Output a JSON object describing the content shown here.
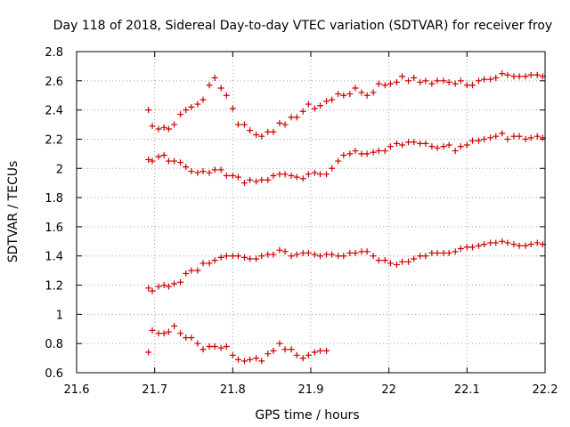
{
  "chart_data": {
    "type": "scatter",
    "title": "Day 118 of 2018, Sidereal Day-to-day VTEC variation (SDTVAR) for receiver froy",
    "xlabel": "GPS time / hours",
    "ylabel": "SDTVAR / TECUs",
    "xlim": [
      21.6,
      22.2
    ],
    "ylim": [
      0.6,
      2.8
    ],
    "grid": true,
    "legend": "none",
    "marker": "+",
    "color": "#cc0000",
    "xticks": [
      "21.6",
      "21.7",
      "21.8",
      "21.9",
      "22",
      "22.1",
      "22.2"
    ],
    "xtick_values": [
      21.6,
      21.7,
      21.8,
      21.9,
      22.0,
      22.1,
      22.2
    ],
    "yticks": [
      "0.6",
      "0.8",
      "1",
      "1.2",
      "1.4",
      "1.6",
      "1.8",
      "2",
      "2.2",
      "2.4",
      "2.6",
      "2.8"
    ],
    "ytick_values": [
      0.6,
      0.8,
      1.0,
      1.2,
      1.4,
      1.6,
      1.8,
      2.0,
      2.2,
      2.4,
      2.6,
      2.8
    ],
    "series": [
      {
        "name": "series-1",
        "x": [
          21.692,
          21.697,
          21.705,
          21.712,
          21.718,
          21.725,
          21.733,
          21.74,
          21.747,
          21.755,
          21.762,
          21.77,
          21.777,
          21.785,
          21.792,
          21.8,
          21.807,
          21.815,
          21.822,
          21.83,
          21.837,
          21.845,
          21.852,
          21.86,
          21.867,
          21.875,
          21.882,
          21.89,
          21.897,
          21.905,
          21.912,
          21.92,
          21.927,
          21.935,
          21.942,
          21.95,
          21.957,
          21.965,
          21.972,
          21.98,
          21.987,
          21.995,
          22.002,
          22.01,
          22.017,
          22.025,
          22.032,
          22.04,
          22.047,
          22.055,
          22.062,
          22.07,
          22.077,
          22.085,
          22.092,
          22.1,
          22.107,
          22.115,
          22.122,
          22.13,
          22.137,
          22.145,
          22.152,
          22.16,
          22.167,
          22.175,
          22.182,
          22.19,
          22.197
        ],
        "y": [
          2.4,
          2.29,
          2.27,
          2.28,
          2.27,
          2.3,
          2.37,
          2.4,
          2.42,
          2.44,
          2.47,
          2.57,
          2.62,
          2.55,
          2.5,
          2.41,
          2.3,
          2.3,
          2.26,
          2.23,
          2.22,
          2.25,
          2.25,
          2.31,
          2.3,
          2.35,
          2.35,
          2.39,
          2.44,
          2.41,
          2.43,
          2.46,
          2.47,
          2.51,
          2.5,
          2.51,
          2.55,
          2.52,
          2.5,
          2.52,
          2.58,
          2.57,
          2.58,
          2.59,
          2.63,
          2.6,
          2.62,
          2.59,
          2.6,
          2.58,
          2.6,
          2.6,
          2.59,
          2.58,
          2.6,
          2.57,
          2.57,
          2.6,
          2.61,
          2.61,
          2.62,
          2.65,
          2.64,
          2.63,
          2.63,
          2.63,
          2.64,
          2.64,
          2.63
        ]
      },
      {
        "name": "series-2",
        "x": [
          21.692,
          21.697,
          21.705,
          21.712,
          21.718,
          21.725,
          21.733,
          21.74,
          21.747,
          21.755,
          21.762,
          21.77,
          21.777,
          21.785,
          21.792,
          21.8,
          21.807,
          21.815,
          21.822,
          21.83,
          21.837,
          21.845,
          21.852,
          21.86,
          21.867,
          21.875,
          21.882,
          21.89,
          21.897,
          21.905,
          21.912,
          21.92,
          21.927,
          21.935,
          21.942,
          21.95,
          21.957,
          21.965,
          21.972,
          21.98,
          21.987,
          21.995,
          22.002,
          22.01,
          22.017,
          22.025,
          22.032,
          22.04,
          22.047,
          22.055,
          22.062,
          22.07,
          22.077,
          22.085,
          22.092,
          22.1,
          22.107,
          22.115,
          22.122,
          22.13,
          22.137,
          22.145,
          22.152,
          22.16,
          22.167,
          22.175,
          22.182,
          22.19,
          22.197
        ],
        "y": [
          2.06,
          2.05,
          2.08,
          2.09,
          2.05,
          2.05,
          2.04,
          2.01,
          1.98,
          1.97,
          1.98,
          1.97,
          1.99,
          1.99,
          1.95,
          1.95,
          1.94,
          1.9,
          1.92,
          1.91,
          1.92,
          1.92,
          1.95,
          1.96,
          1.96,
          1.95,
          1.94,
          1.93,
          1.96,
          1.97,
          1.96,
          1.96,
          2.0,
          2.05,
          2.09,
          2.1,
          2.12,
          2.1,
          2.1,
          2.11,
          2.12,
          2.12,
          2.15,
          2.17,
          2.16,
          2.18,
          2.18,
          2.17,
          2.17,
          2.15,
          2.14,
          2.15,
          2.16,
          2.12,
          2.15,
          2.16,
          2.19,
          2.19,
          2.2,
          2.21,
          2.22,
          2.24,
          2.2,
          2.22,
          2.22,
          2.2,
          2.21,
          2.22,
          2.21
        ]
      },
      {
        "name": "series-3",
        "x": [
          21.692,
          21.697,
          21.705,
          21.712,
          21.718,
          21.725,
          21.733,
          21.74,
          21.747,
          21.755,
          21.762,
          21.77,
          21.777,
          21.785,
          21.792,
          21.8,
          21.807,
          21.815,
          21.822,
          21.83,
          21.837,
          21.845,
          21.852,
          21.86,
          21.867,
          21.875,
          21.882,
          21.89,
          21.897,
          21.905,
          21.912,
          21.92,
          21.927,
          21.935,
          21.942,
          21.95,
          21.957,
          21.965,
          21.972,
          21.98,
          21.987,
          21.995,
          22.002,
          22.01,
          22.017,
          22.025,
          22.032,
          22.04,
          22.047,
          22.055,
          22.062,
          22.07,
          22.077,
          22.085,
          22.092,
          22.1,
          22.107,
          22.115,
          22.122,
          22.13,
          22.137,
          22.145,
          22.152,
          22.16,
          22.167,
          22.175,
          22.182,
          22.19,
          22.197
        ],
        "y": [
          1.18,
          1.16,
          1.19,
          1.2,
          1.19,
          1.21,
          1.22,
          1.28,
          1.3,
          1.3,
          1.35,
          1.35,
          1.37,
          1.39,
          1.4,
          1.4,
          1.4,
          1.39,
          1.38,
          1.38,
          1.4,
          1.41,
          1.41,
          1.44,
          1.43,
          1.4,
          1.41,
          1.42,
          1.42,
          1.41,
          1.4,
          1.41,
          1.41,
          1.4,
          1.4,
          1.42,
          1.42,
          1.43,
          1.43,
          1.4,
          1.37,
          1.37,
          1.35,
          1.34,
          1.36,
          1.36,
          1.38,
          1.4,
          1.4,
          1.42,
          1.42,
          1.42,
          1.42,
          1.43,
          1.45,
          1.46,
          1.46,
          1.47,
          1.48,
          1.49,
          1.49,
          1.5,
          1.49,
          1.48,
          1.47,
          1.47,
          1.48,
          1.49,
          1.48
        ]
      },
      {
        "name": "series-4",
        "x": [
          21.692,
          21.697,
          21.705,
          21.712,
          21.718,
          21.725,
          21.733,
          21.74,
          21.747,
          21.755,
          21.762,
          21.77,
          21.777,
          21.785,
          21.792,
          21.8,
          21.807,
          21.815,
          21.822,
          21.83,
          21.837,
          21.845,
          21.852,
          21.86,
          21.867,
          21.875,
          21.882,
          21.89,
          21.897,
          21.905,
          21.912,
          21.92
        ],
        "y": [
          0.74,
          0.89,
          0.87,
          0.87,
          0.88,
          0.92,
          0.87,
          0.84,
          0.84,
          0.8,
          0.76,
          0.78,
          0.78,
          0.77,
          0.78,
          0.72,
          0.69,
          0.68,
          0.69,
          0.7,
          0.68,
          0.73,
          0.75,
          0.8,
          0.76,
          0.76,
          0.72,
          0.7,
          0.72,
          0.74,
          0.75,
          0.75
        ]
      }
    ]
  }
}
